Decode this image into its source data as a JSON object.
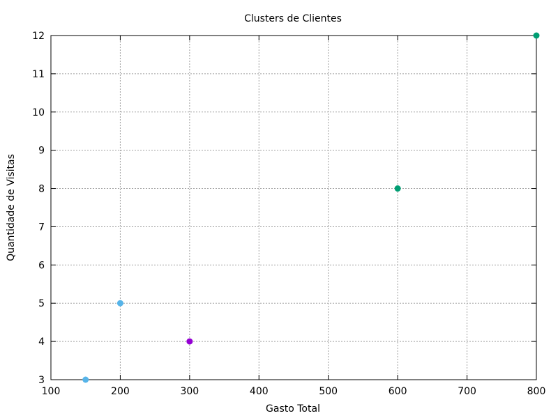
{
  "chart_data": {
    "type": "scatter",
    "title": "Clusters de Clientes",
    "xlabel": "Gasto Total",
    "ylabel": "Quantidade de Visitas",
    "xlim": [
      100,
      800
    ],
    "ylim": [
      3,
      12
    ],
    "xticks": [
      100,
      200,
      300,
      400,
      500,
      600,
      700,
      800
    ],
    "yticks": [
      3,
      4,
      5,
      6,
      7,
      8,
      9,
      10,
      11,
      12
    ],
    "grid": true,
    "points": [
      {
        "x": 150,
        "y": 3,
        "color": "#56b4e9"
      },
      {
        "x": 200,
        "y": 5,
        "color": "#56b4e9"
      },
      {
        "x": 300,
        "y": 4,
        "color": "#9400d3"
      },
      {
        "x": 600,
        "y": 8,
        "color": "#009e73"
      },
      {
        "x": 800,
        "y": 12,
        "color": "#009e73"
      }
    ]
  }
}
